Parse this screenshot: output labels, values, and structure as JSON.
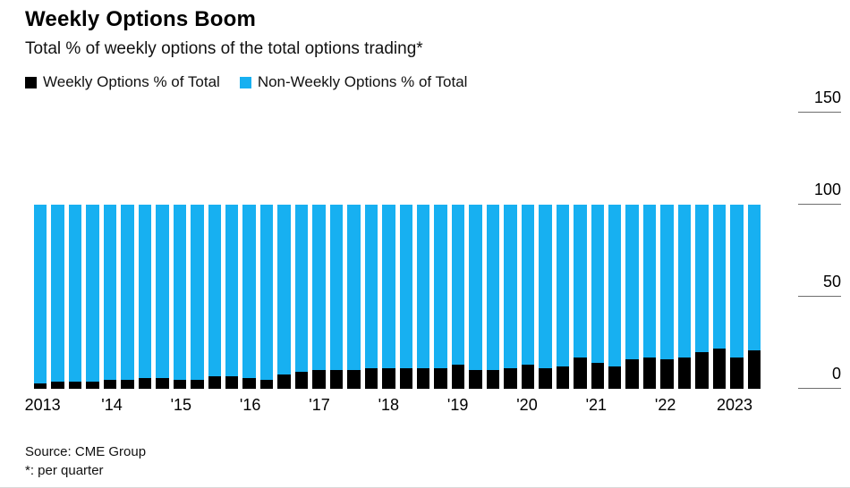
{
  "header": {
    "title": "Weekly Options Boom",
    "subtitle": "Total % of weekly options of the total options trading*"
  },
  "legend": {
    "items": [
      {
        "label": "Weekly Options % of Total",
        "color": "#000000"
      },
      {
        "label": "Non-Weekly Options % of Total",
        "color": "#17b0f1"
      }
    ]
  },
  "footer": {
    "source": "Source: CME Group",
    "footnote": "*: per quarter"
  },
  "chart_data": {
    "type": "bar",
    "stacked": true,
    "title": "Weekly Options Boom",
    "subtitle": "Total % of weekly options of the total options trading*",
    "xlabel": "",
    "ylabel": "",
    "ylim": [
      0,
      160
    ],
    "y_ticks": [
      0,
      50,
      100,
      150
    ],
    "grid": false,
    "legend_position": "top-left",
    "frequency": "quarterly",
    "stack_total": 100,
    "x_ticks": [
      {
        "label": "2013",
        "bar": 0
      },
      {
        "label": "'14",
        "bar": 4
      },
      {
        "label": "'15",
        "bar": 8
      },
      {
        "label": "'16",
        "bar": 12
      },
      {
        "label": "'17",
        "bar": 16
      },
      {
        "label": "'18",
        "bar": 20
      },
      {
        "label": "'19",
        "bar": 24
      },
      {
        "label": "'20",
        "bar": 28
      },
      {
        "label": "'21",
        "bar": 32
      },
      {
        "label": "'22",
        "bar": 36
      },
      {
        "label": "2023",
        "bar": 40
      }
    ],
    "series": [
      {
        "name": "Weekly Options % of Total",
        "color": "#000000",
        "values": [
          3,
          4,
          4,
          4,
          5,
          5,
          6,
          6,
          5,
          5,
          7,
          7,
          6,
          5,
          8,
          9,
          10,
          10,
          10,
          11,
          11,
          11,
          11,
          11,
          13,
          10,
          10,
          11,
          13,
          11,
          12,
          17,
          14,
          12,
          16,
          17,
          16,
          17,
          20,
          22,
          17,
          21
        ]
      },
      {
        "name": "Non-Weekly Options % of Total",
        "color": "#17b0f1",
        "values": [
          97,
          96,
          96,
          96,
          95,
          95,
          94,
          94,
          95,
          95,
          93,
          93,
          94,
          95,
          92,
          91,
          90,
          90,
          90,
          89,
          89,
          89,
          89,
          89,
          87,
          90,
          90,
          89,
          87,
          89,
          88,
          83,
          86,
          88,
          84,
          83,
          84,
          83,
          80,
          78,
          83,
          79
        ]
      }
    ]
  }
}
